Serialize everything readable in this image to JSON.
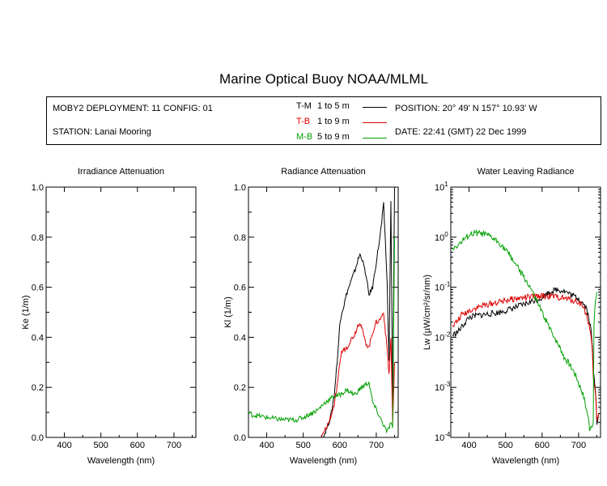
{
  "title": "Marine Optical Buoy NOAA/MLML",
  "info": {
    "deployment": "MOBY2 DEPLOYMENT: 11 CONFIG: 01",
    "station": "STATION: Lanai Mooring",
    "position": "POSITION: 20° 49' N   157° 10.93' W",
    "date": "DATE: 22:41 (GMT) 22 Dec 1999"
  },
  "legend": [
    {
      "code": "T-M",
      "range": "1 to 5  m",
      "color": "#000000"
    },
    {
      "code": "T-B",
      "range": "1 to 9  m",
      "color": "#e00000"
    },
    {
      "code": "M-B",
      "range": "5 to 9  m",
      "color": "#00a000"
    }
  ],
  "colors": {
    "tm": "#000000",
    "tb": "#e00000",
    "mb": "#00a000"
  },
  "chart_data": [
    {
      "type": "line",
      "title": "Irradiance Attenuation",
      "xlabel": "Wavelength (nm)",
      "ylabel": "Ke  (1/m)",
      "xlim": [
        350,
        760
      ],
      "ylim": [
        0,
        1
      ],
      "xticks": [
        "400",
        "500",
        "600",
        "700"
      ],
      "yticks": [
        "0.0",
        "0.2",
        "0.4",
        "0.6",
        "0.8",
        "1.0"
      ],
      "series": []
    },
    {
      "type": "line",
      "title": "Radiance Attenuation",
      "xlabel": "Wavelength (nm)",
      "ylabel": "Kl  (1/m)",
      "xlim": [
        350,
        760
      ],
      "ylim": [
        0,
        1
      ],
      "xticks": [
        "400",
        "500",
        "600",
        "700"
      ],
      "yticks": [
        "0.0",
        "0.2",
        "0.4",
        "0.6",
        "0.8",
        "1.0"
      ],
      "series": [
        {
          "name": "T-M",
          "color": "#000000",
          "x": [
            555,
            575,
            585,
            595,
            600,
            605,
            610,
            620,
            630,
            640,
            650,
            655,
            660,
            670,
            680,
            690,
            700,
            710,
            715,
            720,
            725,
            730,
            735,
            740,
            745,
            750
          ],
          "y": [
            0.0,
            0.08,
            0.17,
            0.34,
            0.45,
            0.5,
            0.52,
            0.58,
            0.62,
            0.66,
            0.71,
            0.73,
            0.72,
            0.66,
            0.57,
            0.6,
            0.7,
            0.8,
            0.86,
            0.93,
            0.78,
            0.6,
            0.3,
            0.95,
            0.1,
            1.0
          ]
        },
        {
          "name": "T-B",
          "color": "#e00000",
          "x": [
            550,
            570,
            585,
            595,
            600,
            605,
            610,
            620,
            630,
            640,
            650,
            655,
            660,
            670,
            680,
            690,
            700,
            710,
            720,
            725,
            730,
            735,
            740,
            745,
            750
          ],
          "y": [
            0.0,
            0.06,
            0.13,
            0.22,
            0.3,
            0.34,
            0.35,
            0.36,
            0.39,
            0.41,
            0.45,
            0.46,
            0.44,
            0.38,
            0.36,
            0.42,
            0.46,
            0.47,
            0.5,
            0.42,
            0.35,
            0.25,
            0.4,
            0.05,
            0.3
          ]
        },
        {
          "name": "M-B",
          "color": "#00a000",
          "x": [
            350,
            360,
            380,
            400,
            420,
            450,
            480,
            500,
            520,
            540,
            560,
            580,
            600,
            620,
            640,
            660,
            680,
            690,
            700,
            710,
            720,
            730,
            740,
            745,
            750
          ],
          "y": [
            0.1,
            0.09,
            0.085,
            0.08,
            0.075,
            0.07,
            0.07,
            0.08,
            0.095,
            0.11,
            0.14,
            0.16,
            0.17,
            0.19,
            0.17,
            0.2,
            0.22,
            0.14,
            0.11,
            0.08,
            0.05,
            0.02,
            0.06,
            0.03,
            0.8
          ]
        }
      ]
    },
    {
      "type": "line",
      "title": "Water Leaving Radiance",
      "xlabel": "Wavelength (nm)",
      "ylabel": "Lw  (µW/cm²/sr/nm)",
      "yscale": "log",
      "xlim": [
        350,
        760
      ],
      "ylim": [
        0.0001,
        10
      ],
      "xticks": [
        "400",
        "500",
        "600",
        "700"
      ],
      "yticks": [
        "10^-4",
        "10^-3",
        "10^-2",
        "10^-1",
        "10^0",
        "10^1"
      ],
      "series": [
        {
          "name": "T-M",
          "color": "#000000",
          "x": [
            355,
            370,
            380,
            390,
            400,
            410,
            420,
            450,
            480,
            500,
            520,
            550,
            580,
            600,
            620,
            640,
            660,
            680,
            700,
            710,
            720,
            730,
            740,
            750,
            755
          ],
          "y": [
            0.011,
            0.013,
            0.016,
            0.02,
            0.025,
            0.026,
            0.027,
            0.029,
            0.031,
            0.034,
            0.038,
            0.045,
            0.055,
            0.062,
            0.08,
            0.09,
            0.085,
            0.07,
            0.06,
            0.05,
            0.04,
            0.02,
            0.002,
            0.0002,
            0.0003
          ]
        },
        {
          "name": "T-B",
          "color": "#e00000",
          "x": [
            355,
            370,
            380,
            390,
            400,
            420,
            450,
            480,
            500,
            520,
            550,
            580,
            600,
            620,
            640,
            660,
            680,
            700,
            710,
            720,
            730,
            740,
            750,
            755
          ],
          "y": [
            0.016,
            0.022,
            0.028,
            0.03,
            0.034,
            0.039,
            0.045,
            0.05,
            0.055,
            0.058,
            0.062,
            0.065,
            0.067,
            0.066,
            0.064,
            0.06,
            0.056,
            0.05,
            0.045,
            0.03,
            0.015,
            0.0015,
            0.0002,
            0.0003
          ]
        },
        {
          "name": "M-B",
          "color": "#00a000",
          "x": [
            355,
            370,
            380,
            390,
            400,
            410,
            420,
            440,
            460,
            480,
            500,
            520,
            540,
            560,
            580,
            600,
            620,
            640,
            660,
            680,
            700,
            710,
            720,
            730,
            740,
            750
          ],
          "y": [
            0.6,
            0.7,
            0.8,
            0.95,
            1.1,
            1.15,
            1.2,
            1.15,
            1.0,
            0.8,
            0.55,
            0.35,
            0.2,
            0.12,
            0.06,
            0.03,
            0.015,
            0.008,
            0.004,
            0.0025,
            0.0012,
            0.0008,
            0.0004,
            0.00015,
            0.0002,
            0.08
          ]
        }
      ]
    }
  ]
}
